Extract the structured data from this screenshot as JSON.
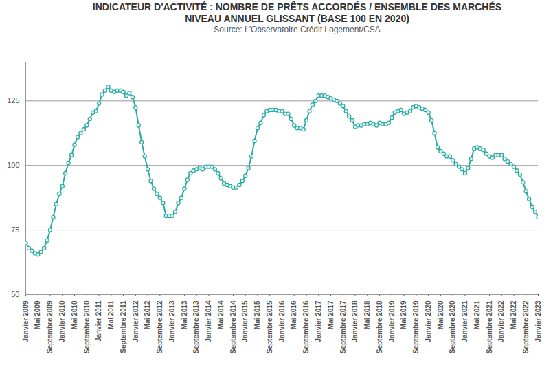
{
  "chart_data": {
    "type": "line",
    "title": "INDICATEUR D'ACTIVITÉ : NOMBRE DE PRÊTS ACCORDÉS / ENSEMBLE DES MARCHÉS",
    "subtitle": "NIVEAU ANNUEL GLISSANT (BASE 100 EN 2020)",
    "source": "Source: L'Observatoire Crédit Logement/CSA",
    "categories": [
      "Janvier 2009",
      null,
      null,
      null,
      "Mai 2009",
      null,
      null,
      null,
      "Septembre 2009",
      null,
      null,
      null,
      "Janvier 2010",
      null,
      null,
      null,
      "Mai 2010",
      null,
      null,
      null,
      "Septembre 2010",
      null,
      null,
      null,
      "Janvier 2011",
      null,
      null,
      null,
      "Mai 2011",
      null,
      null,
      null,
      "Septembre 2011",
      null,
      null,
      null,
      "Janvier 2012",
      null,
      null,
      null,
      "Mai 2012",
      null,
      null,
      null,
      "Septembre 2012",
      null,
      null,
      null,
      "Janvier 2013",
      null,
      null,
      null,
      "Mai 2013",
      null,
      null,
      null,
      "Septembre 2013",
      null,
      null,
      null,
      "Janvier 2014",
      null,
      null,
      null,
      "Mai 2014",
      null,
      null,
      null,
      "Septembre 2014",
      null,
      null,
      null,
      "Janvier 2015",
      null,
      null,
      null,
      "Mai 2015",
      null,
      null,
      null,
      "Septembre 2015",
      null,
      null,
      null,
      "Janvier 2016",
      null,
      null,
      null,
      "Mai 2016",
      null,
      null,
      null,
      "Septembre 2016",
      null,
      null,
      null,
      "Janvier 2017",
      null,
      null,
      null,
      "Mai 2017",
      null,
      null,
      null,
      "Septembre 2017",
      null,
      null,
      null,
      "Janvier 2018",
      null,
      null,
      null,
      "Mai 2018",
      null,
      null,
      null,
      "Septembre 2018",
      null,
      null,
      null,
      "Janvier 2019",
      null,
      null,
      null,
      "Mai 2019",
      null,
      null,
      null,
      "Septembre 2019",
      null,
      null,
      null,
      "Janvier 2020",
      null,
      null,
      null,
      "Mai 2020",
      null,
      null,
      null,
      "Septembre 2020",
      null,
      null,
      null,
      "Janvier 2021",
      null,
      null,
      null,
      "Mai 2021",
      null,
      null,
      null,
      "Septembre 2021",
      null,
      null,
      null,
      "Janvier 2022",
      null,
      null,
      null,
      "Mai 2022",
      null,
      null,
      null,
      "Septembre 2022",
      null,
      null,
      null,
      "Janvier 2023"
    ],
    "values": [
      70,
      68,
      67,
      66,
      65.5,
      66.5,
      68,
      71,
      75,
      80,
      85,
      89,
      92,
      97,
      101,
      104,
      108,
      111,
      112.5,
      114,
      115.5,
      118,
      120.5,
      121,
      124,
      127.5,
      129,
      130.5,
      129,
      128.5,
      129,
      129,
      128.5,
      127,
      128,
      126.5,
      122.5,
      115.5,
      109,
      103.5,
      98.5,
      94,
      91,
      89,
      87.5,
      85.5,
      80.5,
      80.5,
      80.5,
      82,
      85.5,
      87.5,
      91,
      94.5,
      97,
      98,
      98.5,
      99,
      98.5,
      99.5,
      99.5,
      99.5,
      98.5,
      97,
      95,
      93,
      92.5,
      92,
      91.5,
      91.5,
      92.5,
      94,
      96,
      99,
      103.5,
      109.5,
      114.5,
      116.5,
      119.5,
      121,
      121.5,
      121.5,
      121.5,
      121,
      121,
      120,
      120,
      118,
      115.5,
      114.5,
      114.5,
      114,
      117.5,
      121,
      123.5,
      125,
      127,
      127,
      127,
      126.5,
      126,
      125.5,
      125,
      124,
      123,
      121,
      119,
      117.5,
      115,
      115.5,
      115.5,
      116,
      116,
      116.5,
      116,
      115.5,
      116.5,
      116,
      116,
      116.5,
      118.5,
      120.5,
      121,
      121.5,
      120,
      120.5,
      121,
      122.5,
      123,
      122.5,
      122,
      121.5,
      120.5,
      117.5,
      112.5,
      107,
      105.5,
      104.5,
      103.5,
      103.5,
      102,
      100.5,
      99.5,
      98.5,
      97,
      99,
      102.5,
      106.5,
      107,
      106.5,
      106,
      104.5,
      103.5,
      103,
      104,
      104,
      104,
      102.5,
      101.5,
      100.5,
      99.5,
      98,
      96.5,
      93.5,
      90,
      87,
      84,
      82,
      80
    ],
    "color": "#2aa9a3",
    "marker": "circle",
    "line_style": "solid",
    "ylim": [
      50,
      140
    ],
    "yticks": [
      50,
      75,
      100,
      125
    ],
    "grid": true
  }
}
